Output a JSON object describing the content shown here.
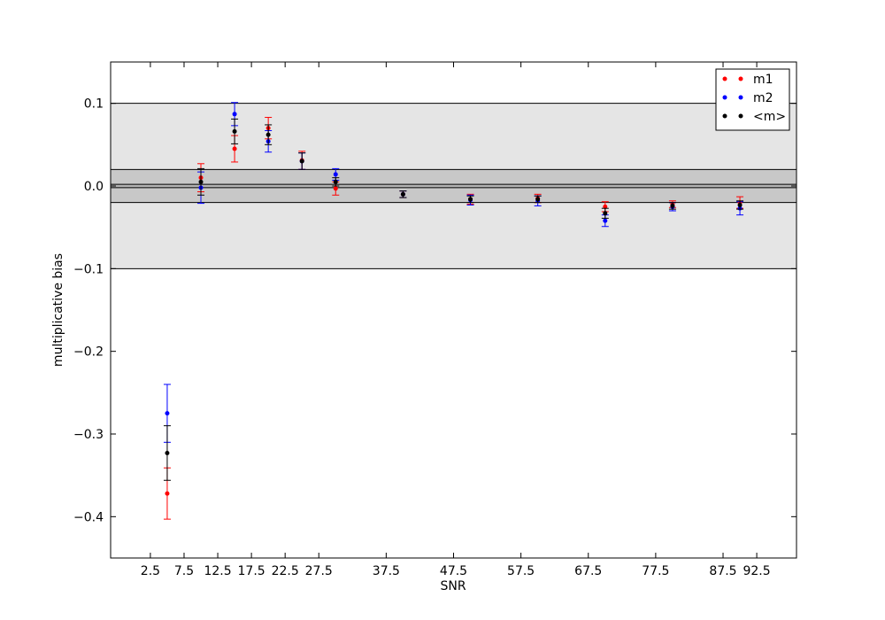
{
  "chart_data": {
    "type": "errorbar",
    "x_label": "SNR",
    "y_label": "multiplicative bias",
    "xlim": [
      -3.4,
      98.4
    ],
    "ylim": [
      -0.45,
      0.15
    ],
    "xticks": [
      2.5,
      7.5,
      12.5,
      17.5,
      22.5,
      27.5,
      37.5,
      47.5,
      57.5,
      67.5,
      77.5,
      87.5,
      92.5
    ],
    "yticks": [
      {
        "value": -0.4,
        "label": "−0.4"
      },
      {
        "value": -0.3,
        "label": "−0.3"
      },
      {
        "value": -0.2,
        "label": "−0.2"
      },
      {
        "value": -0.1,
        "label": "−0.1"
      },
      {
        "value": 0,
        "label": "0.0"
      },
      {
        "value": 0.1,
        "label": "0.1"
      }
    ],
    "bands": [
      {
        "ymin": -0.1,
        "ymax": 0.1,
        "color": "#e5e5e5"
      },
      {
        "ymin": -0.02,
        "ymax": 0.02,
        "color": "#c8c8c8"
      },
      {
        "ymin": -0.002,
        "ymax": 0.002,
        "color": "#b4b4b4"
      }
    ],
    "legend": "upper right",
    "x": [
      5,
      10,
      15,
      20,
      25,
      30,
      40,
      50,
      60,
      70,
      80,
      90
    ],
    "series": [
      {
        "name": "m1",
        "color": "#ff0000",
        "values": [
          -0.372,
          0.01,
          0.045,
          0.07,
          0.031,
          -0.003,
          -0.01,
          -0.016,
          -0.015,
          -0.025,
          -0.022,
          -0.02
        ],
        "errors": [
          0.031,
          0.017,
          0.016,
          0.013,
          0.011,
          0.008,
          0.004,
          0.006,
          0.005,
          0.006,
          0.004,
          0.007
        ]
      },
      {
        "name": "m2",
        "color": "#0000ff",
        "values": [
          -0.275,
          -0.002,
          0.087,
          0.054,
          0.03,
          0.014,
          -0.01,
          -0.017,
          -0.018,
          -0.042,
          -0.025,
          -0.027
        ],
        "errors": [
          0.035,
          0.019,
          0.014,
          0.013,
          0.01,
          0.007,
          0.004,
          0.006,
          0.006,
          0.007,
          0.005,
          0.008
        ]
      },
      {
        "name": "<m>",
        "color": "#000000",
        "values": [
          -0.323,
          0.005,
          0.066,
          0.062,
          0.03,
          0.005,
          -0.01,
          -0.016,
          -0.016,
          -0.033,
          -0.024,
          -0.023
        ],
        "errors": [
          0.033,
          0.016,
          0.015,
          0.012,
          0.01,
          0.005,
          0.004,
          0.004,
          0.004,
          0.006,
          0.004,
          0.005
        ]
      }
    ]
  }
}
